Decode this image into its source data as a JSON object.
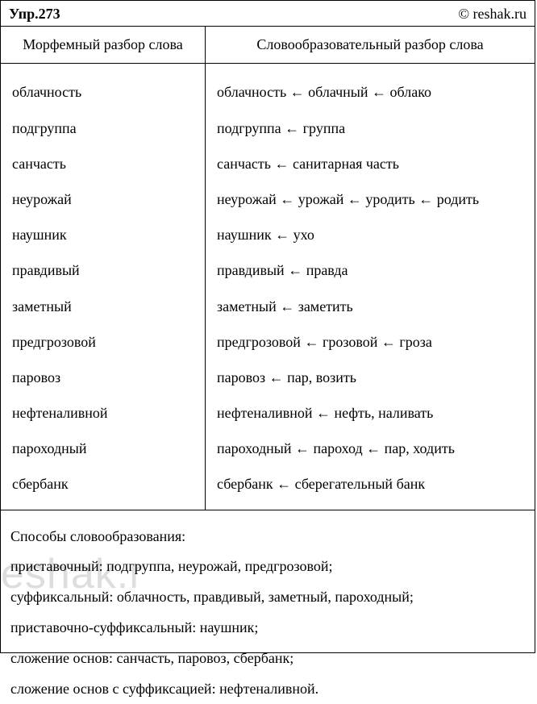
{
  "header": {
    "left": "Упр.273",
    "right": "© reshak.ru"
  },
  "table": {
    "columns": [
      "Морфемный разбор слова",
      "Словообразовательный разбор слова"
    ],
    "rows": [
      {
        "left": "облачность",
        "right": "облачность ← облачный ← облако"
      },
      {
        "left": "подгруппа",
        "right": "подгруппа ← группа"
      },
      {
        "left": "санчасть",
        "right": "санчасть ← санитарная часть"
      },
      {
        "left": "неурожай",
        "right": "неурожай ← урожай ← уродить ← родить"
      },
      {
        "left": "наушник",
        "right": "наушник ← ухо"
      },
      {
        "left": "правдивый",
        "right": "правдивый ← правда"
      },
      {
        "left": "заметный",
        "right": "заметный ← заметить"
      },
      {
        "left": "предгрозовой",
        "right": "предгрозовой ← грозовой ← гроза"
      },
      {
        "left": "паровоз",
        "right": "паровоз ← пар, возить"
      },
      {
        "left": "нефтеналивной",
        "right": "нефтеналивной ← нефть, наливать"
      },
      {
        "left": "пароходный",
        "right": "пароходный ← пароход ← пар, ходить"
      },
      {
        "left": "сбербанк",
        "right": "сбербанк ← сберегательный банк"
      }
    ]
  },
  "footer": {
    "heading": "Способы словообразования:",
    "lines": [
      "приставочный: подгруппа, неурожай, предгрозовой;",
      "суффиксальный: облачность, правдивый, заметный, пароходный;",
      "приставочно-суффиксальный: наушник;",
      "сложение основ: санчасть, паровоз, сбербанк;",
      "сложение основ с суффиксацией: нефтеналивной."
    ]
  },
  "watermark": "eshak.r"
}
